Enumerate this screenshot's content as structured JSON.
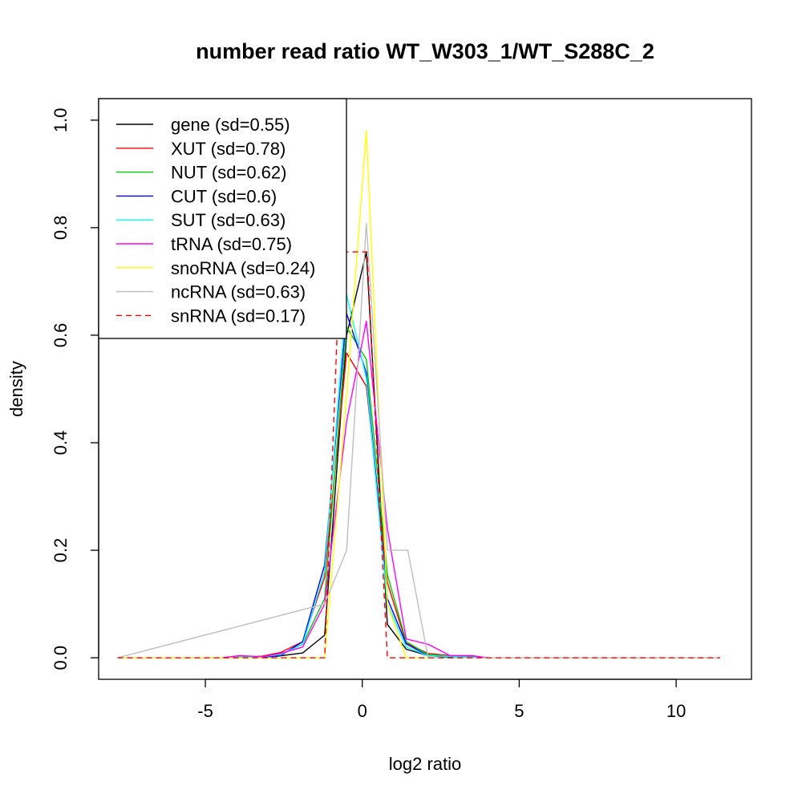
{
  "chart_data": {
    "type": "line",
    "title": "number read ratio WT_W303_1/WT_S288C_2",
    "xlabel": "log2 ratio",
    "ylabel": "density",
    "xlim": [
      -8.4,
      12.4
    ],
    "ylim": [
      -0.04,
      1.04
    ],
    "x_ticks": [
      -5,
      0,
      5,
      10
    ],
    "x_tick_labels": [
      "-5",
      "0",
      "5",
      "10"
    ],
    "y_ticks": [
      0.0,
      0.2,
      0.4,
      0.6,
      0.8,
      1.0
    ],
    "y_tick_labels": [
      "0.0",
      "0.2",
      "0.4",
      "0.6",
      "0.8",
      "1.0"
    ],
    "grid": false,
    "legend_position": "top-left",
    "series": [
      {
        "name": "gene (sd=0.55)",
        "color": "#000000",
        "dash": "solid",
        "points": [
          [
            -7.8,
            0
          ],
          [
            -4.5,
            0
          ],
          [
            -3.5,
            0.001
          ],
          [
            -2.7,
            0.003
          ],
          [
            -1.9,
            0.009
          ],
          [
            -1.2,
            0.042
          ],
          [
            -0.5,
            0.6
          ],
          [
            0.13,
            0.755
          ],
          [
            0.8,
            0.062
          ],
          [
            1.4,
            0.016
          ],
          [
            2.1,
            0.004
          ],
          [
            3.0,
            0.001
          ],
          [
            4.0,
            0
          ],
          [
            11.4,
            0
          ]
        ]
      },
      {
        "name": "XUT (sd=0.78)",
        "color": "#FF0000",
        "dash": "solid",
        "points": [
          [
            -7.8,
            0
          ],
          [
            -4.5,
            0
          ],
          [
            -3.9,
            0.001
          ],
          [
            -3.2,
            0.003
          ],
          [
            -2.6,
            0.01
          ],
          [
            -1.9,
            0.03
          ],
          [
            -1.2,
            0.15
          ],
          [
            -0.5,
            0.567
          ],
          [
            0.13,
            0.505
          ],
          [
            0.8,
            0.14
          ],
          [
            1.4,
            0.027
          ],
          [
            2.1,
            0.008
          ],
          [
            2.8,
            0.004
          ],
          [
            3.5,
            0.002
          ],
          [
            4.0,
            0
          ],
          [
            11.4,
            0
          ]
        ]
      },
      {
        "name": "NUT (sd=0.62)",
        "color": "#00CD00",
        "dash": "solid",
        "points": [
          [
            -7.8,
            0
          ],
          [
            -4.5,
            0
          ],
          [
            -3.2,
            0.002
          ],
          [
            -2.6,
            0.006
          ],
          [
            -1.9,
            0.025
          ],
          [
            -1.2,
            0.11
          ],
          [
            -0.5,
            0.615
          ],
          [
            0.13,
            0.555
          ],
          [
            0.8,
            0.155
          ],
          [
            1.4,
            0.03
          ],
          [
            2.1,
            0.006
          ],
          [
            2.8,
            0.003
          ],
          [
            4.0,
            0
          ],
          [
            11.4,
            0
          ]
        ]
      },
      {
        "name": "CUT (sd=0.6)",
        "color": "#0000FF",
        "dash": "solid",
        "points": [
          [
            -7.8,
            0
          ],
          [
            -4.5,
            0
          ],
          [
            -3.2,
            0.001
          ],
          [
            -2.6,
            0.004
          ],
          [
            -1.9,
            0.03
          ],
          [
            -1.2,
            0.173
          ],
          [
            -0.5,
            0.64
          ],
          [
            0.13,
            0.53
          ],
          [
            0.8,
            0.11
          ],
          [
            1.4,
            0.026
          ],
          [
            2.1,
            0.004
          ],
          [
            4.0,
            0
          ],
          [
            11.4,
            0
          ]
        ]
      },
      {
        "name": "SUT (sd=0.63)",
        "color": "#00FFFF",
        "dash": "solid",
        "points": [
          [
            -7.8,
            0
          ],
          [
            -4.5,
            0
          ],
          [
            -3.2,
            0.002
          ],
          [
            -2.6,
            0.006
          ],
          [
            -1.9,
            0.025
          ],
          [
            -1.2,
            0.16
          ],
          [
            -0.5,
            0.675
          ],
          [
            0.13,
            0.52
          ],
          [
            0.8,
            0.1
          ],
          [
            1.4,
            0.02
          ],
          [
            2.1,
            0.004
          ],
          [
            4.0,
            0
          ],
          [
            11.4,
            0
          ]
        ]
      },
      {
        "name": "tRNA (sd=0.75)",
        "color": "#FF00FF",
        "dash": "solid",
        "points": [
          [
            -7.8,
            0
          ],
          [
            -4.5,
            0
          ],
          [
            -3.9,
            0.004
          ],
          [
            -3.2,
            0.002
          ],
          [
            -2.6,
            0.008
          ],
          [
            -1.9,
            0.02
          ],
          [
            -1.2,
            0.1
          ],
          [
            -0.5,
            0.44
          ],
          [
            0.13,
            0.626
          ],
          [
            0.8,
            0.24
          ],
          [
            1.4,
            0.035
          ],
          [
            2.1,
            0.025
          ],
          [
            2.8,
            0.004
          ],
          [
            3.5,
            0.004
          ],
          [
            4.0,
            0
          ],
          [
            11.4,
            0
          ]
        ]
      },
      {
        "name": "snoRNA (sd=0.24)",
        "color": "#FFFF00",
        "dash": "solid",
        "points": [
          [
            -7.8,
            0
          ],
          [
            -1.2,
            0
          ],
          [
            -0.5,
            0.49
          ],
          [
            0.13,
            0.98
          ],
          [
            0.8,
            0.1
          ],
          [
            1.4,
            0
          ],
          [
            11.4,
            0
          ]
        ]
      },
      {
        "name": "ncRNA (sd=0.63)",
        "color": "#BEBEBE",
        "dash": "solid",
        "points": [
          [
            -7.8,
            0
          ],
          [
            -1.2,
            0.1
          ],
          [
            -0.5,
            0.2
          ],
          [
            0.13,
            0.808
          ],
          [
            0.8,
            0.2
          ],
          [
            1.45,
            0.2
          ],
          [
            2.1,
            0
          ],
          [
            11.4,
            0
          ]
        ]
      },
      {
        "name": "snRNA (sd=0.17)",
        "color": "#FF0000",
        "dash": "dashed",
        "points": [
          [
            -7.8,
            0
          ],
          [
            -1.2,
            0
          ],
          [
            -0.7,
            0.755
          ],
          [
            0.15,
            0.755
          ],
          [
            0.8,
            0
          ],
          [
            11.4,
            0
          ]
        ]
      }
    ]
  }
}
